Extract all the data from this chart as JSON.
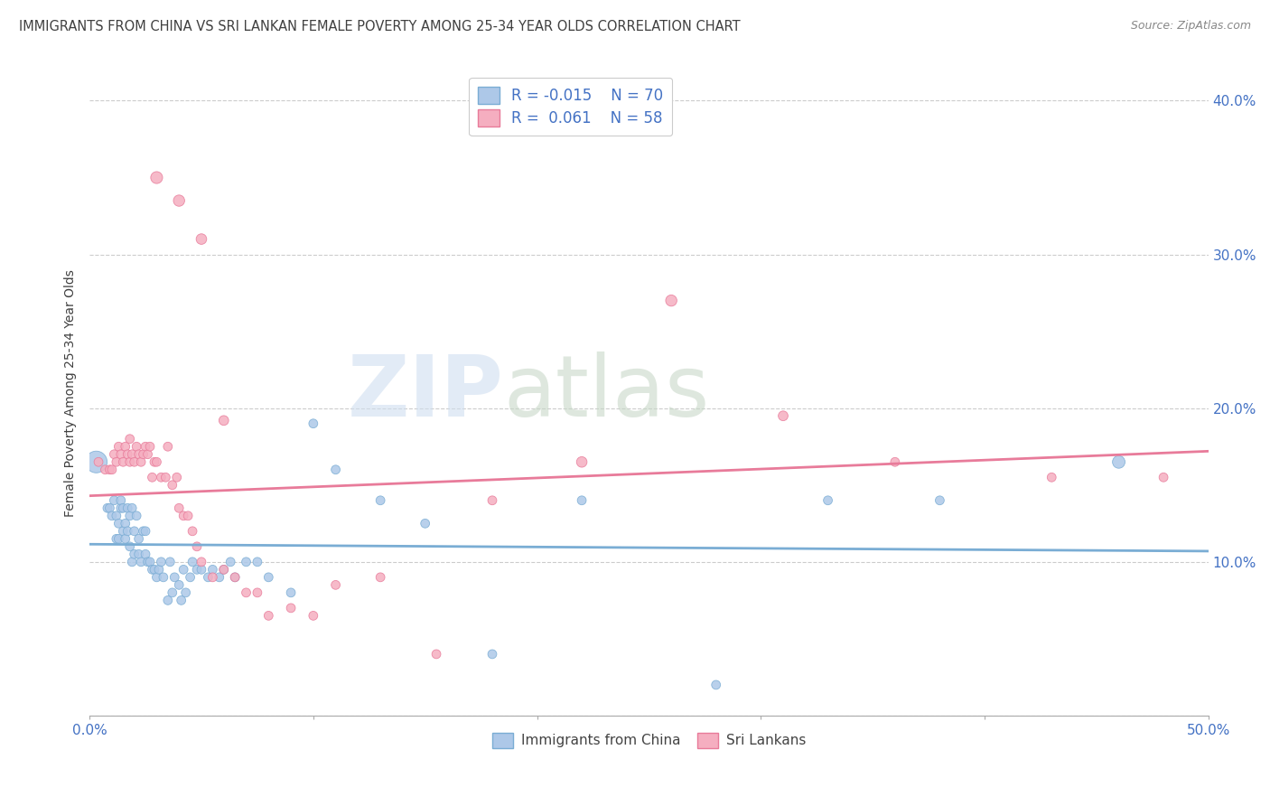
{
  "title": "IMMIGRANTS FROM CHINA VS SRI LANKAN FEMALE POVERTY AMONG 25-34 YEAR OLDS CORRELATION CHART",
  "source": "Source: ZipAtlas.com",
  "ylabel": "Female Poverty Among 25-34 Year Olds",
  "xlim": [
    0.0,
    0.5
  ],
  "ylim": [
    0.0,
    0.42
  ],
  "xticks": [
    0.0,
    0.1,
    0.2,
    0.3,
    0.4,
    0.5
  ],
  "xticklabels_show": [
    "0.0%",
    "",
    "",
    "",
    "",
    "50.0%"
  ],
  "yticks": [
    0.0,
    0.1,
    0.2,
    0.3,
    0.4
  ],
  "yticklabels": [
    "",
    "10.0%",
    "20.0%",
    "30.0%",
    "40.0%"
  ],
  "grid_color": "#cccccc",
  "background_color": "#ffffff",
  "watermark_part1": "ZIP",
  "watermark_part2": "atlas",
  "legend_R1": "-0.015",
  "legend_N1": "70",
  "legend_R2": " 0.061",
  "legend_N2": "58",
  "series1_color": "#adc8e8",
  "series2_color": "#f5aec0",
  "series1_edge_color": "#7aadd4",
  "series2_edge_color": "#e87b9a",
  "series1_label": "Immigrants from China",
  "series2_label": "Sri Lankans",
  "legend_text_color": "#4472c4",
  "tick_color": "#4472c4",
  "title_color": "#404040",
  "ylabel_color": "#404040",
  "china_trend_x": [
    0.0,
    0.5
  ],
  "china_trend_y": [
    0.1115,
    0.107
  ],
  "srilanka_trend_x": [
    0.0,
    0.5
  ],
  "srilanka_trend_y": [
    0.143,
    0.172
  ],
  "china_x": [
    0.003,
    0.008,
    0.009,
    0.01,
    0.011,
    0.012,
    0.012,
    0.013,
    0.013,
    0.014,
    0.014,
    0.015,
    0.015,
    0.016,
    0.016,
    0.017,
    0.017,
    0.018,
    0.018,
    0.019,
    0.019,
    0.02,
    0.02,
    0.021,
    0.022,
    0.022,
    0.023,
    0.024,
    0.025,
    0.025,
    0.026,
    0.027,
    0.028,
    0.029,
    0.03,
    0.031,
    0.032,
    0.033,
    0.035,
    0.036,
    0.037,
    0.038,
    0.04,
    0.041,
    0.042,
    0.043,
    0.045,
    0.046,
    0.048,
    0.05,
    0.053,
    0.055,
    0.058,
    0.06,
    0.063,
    0.065,
    0.07,
    0.075,
    0.08,
    0.09,
    0.1,
    0.11,
    0.13,
    0.15,
    0.18,
    0.22,
    0.28,
    0.33,
    0.38,
    0.46
  ],
  "china_y": [
    0.165,
    0.135,
    0.135,
    0.13,
    0.14,
    0.115,
    0.13,
    0.115,
    0.125,
    0.135,
    0.14,
    0.12,
    0.135,
    0.125,
    0.115,
    0.135,
    0.12,
    0.13,
    0.11,
    0.135,
    0.1,
    0.12,
    0.105,
    0.13,
    0.115,
    0.105,
    0.1,
    0.12,
    0.105,
    0.12,
    0.1,
    0.1,
    0.095,
    0.095,
    0.09,
    0.095,
    0.1,
    0.09,
    0.075,
    0.1,
    0.08,
    0.09,
    0.085,
    0.075,
    0.095,
    0.08,
    0.09,
    0.1,
    0.095,
    0.095,
    0.09,
    0.095,
    0.09,
    0.095,
    0.1,
    0.09,
    0.1,
    0.1,
    0.09,
    0.08,
    0.19,
    0.16,
    0.14,
    0.125,
    0.04,
    0.14,
    0.02,
    0.14,
    0.14,
    0.165
  ],
  "china_size": [
    300,
    50,
    50,
    50,
    50,
    50,
    50,
    50,
    50,
    50,
    50,
    50,
    50,
    50,
    50,
    50,
    50,
    50,
    50,
    50,
    50,
    50,
    50,
    50,
    50,
    50,
    50,
    50,
    50,
    50,
    50,
    50,
    50,
    50,
    50,
    50,
    50,
    50,
    50,
    50,
    50,
    50,
    50,
    50,
    50,
    50,
    50,
    50,
    50,
    50,
    50,
    50,
    50,
    50,
    50,
    50,
    50,
    50,
    50,
    50,
    50,
    50,
    50,
    50,
    50,
    50,
    50,
    50,
    50,
    100
  ],
  "srilanka_x": [
    0.004,
    0.007,
    0.009,
    0.01,
    0.011,
    0.012,
    0.013,
    0.014,
    0.015,
    0.016,
    0.017,
    0.018,
    0.018,
    0.019,
    0.02,
    0.021,
    0.022,
    0.023,
    0.024,
    0.025,
    0.026,
    0.027,
    0.028,
    0.029,
    0.03,
    0.032,
    0.034,
    0.035,
    0.037,
    0.039,
    0.04,
    0.042,
    0.044,
    0.046,
    0.048,
    0.05,
    0.055,
    0.06,
    0.065,
    0.07,
    0.075,
    0.08,
    0.09,
    0.1,
    0.11,
    0.13,
    0.155,
    0.18,
    0.22,
    0.26,
    0.31,
    0.36,
    0.43,
    0.48,
    0.03,
    0.04,
    0.05,
    0.06
  ],
  "srilanka_y": [
    0.165,
    0.16,
    0.16,
    0.16,
    0.17,
    0.165,
    0.175,
    0.17,
    0.165,
    0.175,
    0.17,
    0.18,
    0.165,
    0.17,
    0.165,
    0.175,
    0.17,
    0.165,
    0.17,
    0.175,
    0.17,
    0.175,
    0.155,
    0.165,
    0.165,
    0.155,
    0.155,
    0.175,
    0.15,
    0.155,
    0.135,
    0.13,
    0.13,
    0.12,
    0.11,
    0.1,
    0.09,
    0.095,
    0.09,
    0.08,
    0.08,
    0.065,
    0.07,
    0.065,
    0.085,
    0.09,
    0.04,
    0.14,
    0.165,
    0.27,
    0.195,
    0.165,
    0.155,
    0.155,
    0.35,
    0.335,
    0.31,
    0.192
  ],
  "srilanka_size": [
    50,
    50,
    50,
    50,
    50,
    50,
    50,
    50,
    50,
    50,
    50,
    50,
    50,
    50,
    50,
    50,
    50,
    50,
    50,
    50,
    50,
    50,
    50,
    50,
    50,
    50,
    50,
    50,
    50,
    50,
    50,
    50,
    50,
    50,
    50,
    50,
    50,
    50,
    50,
    50,
    50,
    50,
    50,
    50,
    50,
    50,
    50,
    50,
    70,
    80,
    60,
    50,
    50,
    50,
    90,
    80,
    70,
    60
  ]
}
